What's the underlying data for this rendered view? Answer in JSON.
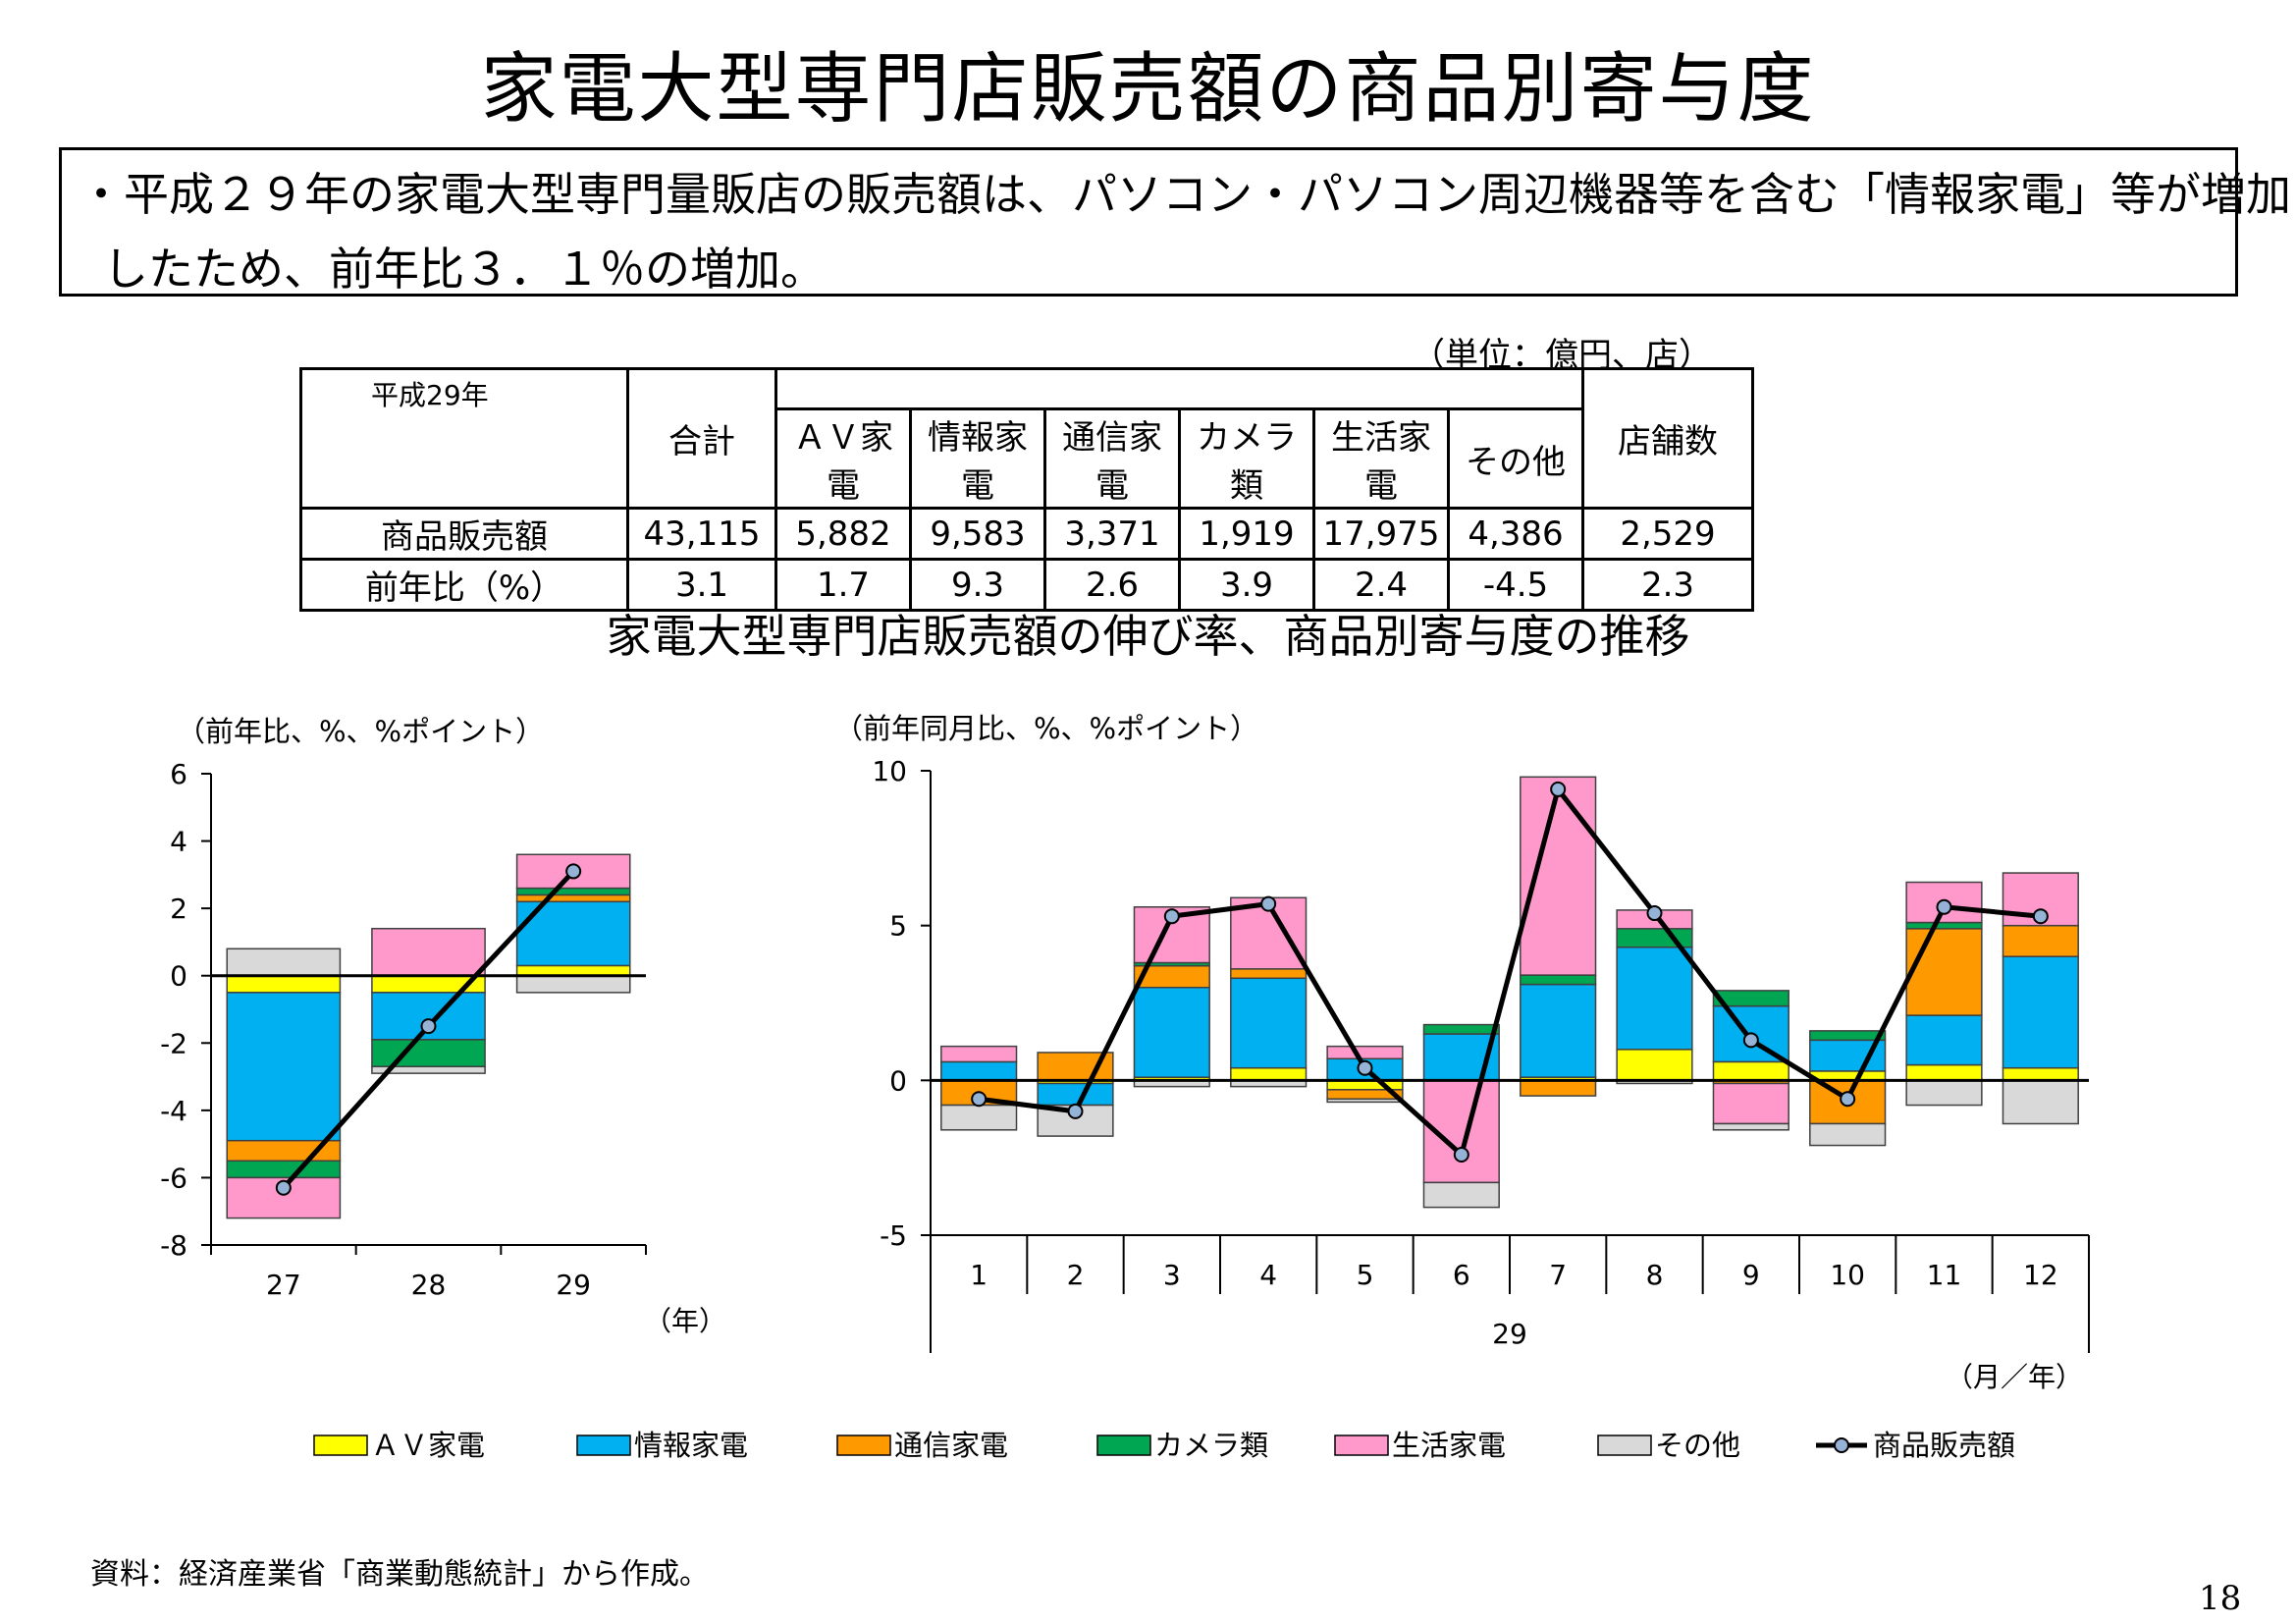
{
  "title": "家電大型専門店販売額の商品別寄与度",
  "summary": {
    "line1": "・平成２９年の家電大型専門量販店の販売額は、パソコン・パソコン周辺機器等を含む「情報家電」等が増加",
    "line2": "したため、前年比３．１％の増加。"
  },
  "table": {
    "unit": "（単位：億円、店）",
    "year_label": "平成29年",
    "total_header": "合計",
    "category_headers": [
      "ＡＶ家電",
      "情報家電",
      "通信家電",
      "カメラ類",
      "生活家電",
      "その他"
    ],
    "stores_header": "店舗数",
    "rows": [
      {
        "label": "商品販売額",
        "total": "43,115",
        "values": [
          "5,882",
          "9,583",
          "3,371",
          "1,919",
          "17,975",
          "4,386"
        ],
        "stores": "2,529"
      },
      {
        "label": "前年比（%）",
        "total": "3.1",
        "values": [
          "1.7",
          "9.3",
          "2.6",
          "3.9",
          "2.4",
          "-4.5"
        ],
        "stores": "2.3"
      }
    ]
  },
  "chart_subtitle": "家電大型専門店販売額の伸び率、商品別寄与度の推移",
  "colors": {
    "av": "#ffff00",
    "info": "#00b0f0",
    "comm": "#ff9900",
    "camera": "#00a651",
    "life": "#ff99cc",
    "other": "#d9d9d9",
    "line": "#000000",
    "marker": "#95b3d7"
  },
  "chart_data": [
    {
      "type": "bar",
      "stacked": true,
      "unit_label": "（前年比、%、%ポイント）",
      "categories": [
        "27",
        "28",
        "29"
      ],
      "x_unit": "（年）",
      "ylim": [
        -8,
        6
      ],
      "yticks": [
        6,
        4,
        2,
        0,
        -2,
        -4,
        -6,
        -8
      ],
      "series": [
        {
          "name": "ＡＶ家電",
          "key": "av",
          "values": [
            -0.5,
            -0.5,
            0.3
          ]
        },
        {
          "name": "情報家電",
          "key": "info",
          "values": [
            -4.4,
            -1.4,
            1.9
          ]
        },
        {
          "name": "通信家電",
          "key": "comm",
          "values": [
            -0.6,
            0.0,
            0.2
          ]
        },
        {
          "name": "カメラ類",
          "key": "camera",
          "values": [
            -0.5,
            -0.8,
            0.2
          ]
        },
        {
          "name": "生活家電",
          "key": "life",
          "values": [
            -1.2,
            1.4,
            1.0
          ]
        },
        {
          "name": "その他",
          "key": "other",
          "values": [
            0.8,
            -0.2,
            -0.5
          ]
        }
      ],
      "line": {
        "name": "商品販売額",
        "values": [
          -6.3,
          -1.5,
          3.1
        ]
      }
    },
    {
      "type": "bar",
      "stacked": true,
      "unit_label": "（前年同月比、%、%ポイント）",
      "categories": [
        "1",
        "2",
        "3",
        "4",
        "5",
        "6",
        "7",
        "8",
        "9",
        "10",
        "11",
        "12"
      ],
      "group_label": "29",
      "x_unit": "（月／年）",
      "ylim": [
        -5,
        10
      ],
      "yticks": [
        10,
        5,
        0,
        -5
      ],
      "series": [
        {
          "name": "ＡＶ家電",
          "key": "av",
          "values": [
            0.0,
            -0.1,
            0.1,
            0.4,
            -0.3,
            0.0,
            0.1,
            1.0,
            0.6,
            0.3,
            0.5,
            0.4
          ]
        },
        {
          "name": "情報家電",
          "key": "info",
          "values": [
            0.6,
            -0.7,
            2.9,
            2.9,
            0.7,
            1.5,
            3.0,
            3.3,
            1.8,
            1.0,
            1.6,
            3.6
          ]
        },
        {
          "name": "通信家電",
          "key": "comm",
          "values": [
            -0.8,
            0.9,
            0.7,
            0.3,
            -0.3,
            0.0,
            -0.5,
            0.0,
            -0.1,
            -1.4,
            2.8,
            1.0
          ]
        },
        {
          "name": "カメラ類",
          "key": "camera",
          "values": [
            0.0,
            0.0,
            0.1,
            0.0,
            0.0,
            0.3,
            0.3,
            0.6,
            0.5,
            0.3,
            0.2,
            0.0
          ]
        },
        {
          "name": "生活家電",
          "key": "life",
          "values": [
            0.5,
            0.0,
            1.8,
            2.3,
            0.4,
            -3.3,
            6.4,
            0.6,
            -1.3,
            0.0,
            1.3,
            1.7
          ]
        },
        {
          "name": "その他",
          "key": "other",
          "values": [
            -0.8,
            -1.0,
            -0.2,
            -0.2,
            -0.1,
            -0.8,
            0.0,
            -0.1,
            -0.2,
            -0.7,
            -0.8,
            -1.4
          ]
        }
      ],
      "line": {
        "name": "商品販売額",
        "values": [
          -0.6,
          -1.0,
          5.3,
          5.7,
          0.4,
          -2.4,
          9.4,
          5.4,
          1.3,
          -0.6,
          5.6,
          5.3
        ]
      }
    }
  ],
  "legend": [
    {
      "label": "ＡＶ家電",
      "key": "av"
    },
    {
      "label": "情報家電",
      "key": "info"
    },
    {
      "label": "通信家電",
      "key": "comm"
    },
    {
      "label": "カメラ類",
      "key": "camera"
    },
    {
      "label": "生活家電",
      "key": "life"
    },
    {
      "label": "その他",
      "key": "other"
    },
    {
      "label": "商品販売額",
      "key": "line"
    }
  ],
  "footer_source": "資料：経済産業省「商業動態統計」から作成。",
  "page_number": "18"
}
